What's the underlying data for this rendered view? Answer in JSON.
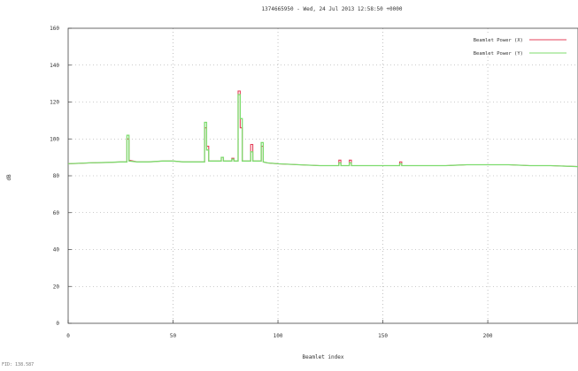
{
  "chart_data": {
    "type": "line",
    "title": "1374665950 - Wed, 24 Jul 2013 12:58:50 +0000",
    "xlabel": "Beamlet index",
    "ylabel": "dB",
    "xlim": [
      0,
      243
    ],
    "ylim": [
      0,
      160
    ],
    "x_ticks": [
      0,
      50,
      100,
      150,
      200
    ],
    "y_ticks": [
      0,
      20,
      40,
      60,
      80,
      100,
      120,
      140,
      160
    ],
    "grid": true,
    "legend_position": "top-right",
    "footer_text": "FID: 138.587",
    "series": [
      {
        "name": "Beamlet Power (X)",
        "color": "#e4405a",
        "x": [
          0,
          10,
          20,
          25,
          28,
          28,
          29,
          29,
          33,
          38,
          45,
          50,
          55,
          60,
          64,
          65,
          65,
          66,
          66,
          67,
          67,
          70,
          73,
          73,
          74,
          74,
          78,
          78,
          79,
          79,
          81,
          81,
          82,
          82,
          83,
          83,
          87,
          87,
          88,
          88,
          92,
          92,
          93,
          93,
          95,
          100,
          110,
          120,
          129,
          129,
          130,
          130,
          134,
          134,
          135,
          135,
          140,
          150,
          158,
          158,
          159,
          159,
          170,
          180,
          190,
          200,
          210,
          220,
          230,
          243
        ],
        "y": [
          86.5,
          87,
          87.3,
          87.5,
          87.5,
          100,
          100,
          88.5,
          87.5,
          87.5,
          88,
          88,
          87.5,
          87.5,
          87.5,
          87.5,
          106,
          106,
          96,
          96,
          88,
          88,
          88,
          90,
          90,
          88,
          88,
          89.5,
          89.5,
          88,
          88,
          126,
          126,
          106,
          106,
          88,
          88,
          97,
          97,
          88,
          88,
          96,
          96,
          87.5,
          87,
          86.5,
          86,
          85.5,
          85.5,
          88.5,
          88.5,
          85.5,
          85.5,
          88.5,
          88.5,
          85.5,
          85.5,
          85.5,
          85.5,
          87.5,
          87.5,
          85.5,
          85.5,
          85.5,
          86,
          86,
          86,
          85.5,
          85.5,
          85
        ]
      },
      {
        "name": "Beamlet Power (Y)",
        "color": "#7ddc6e",
        "x": [
          0,
          10,
          20,
          25,
          28,
          28,
          29,
          29,
          33,
          38,
          45,
          50,
          55,
          60,
          64,
          65,
          65,
          66,
          66,
          67,
          67,
          70,
          73,
          73,
          74,
          74,
          78,
          78,
          79,
          79,
          81,
          81,
          82,
          82,
          83,
          83,
          87,
          87,
          88,
          88,
          92,
          92,
          93,
          93,
          95,
          100,
          110,
          120,
          129,
          129,
          130,
          130,
          134,
          134,
          135,
          135,
          140,
          150,
          158,
          158,
          159,
          159,
          170,
          180,
          190,
          200,
          210,
          220,
          230,
          243
        ],
        "y": [
          86.5,
          87,
          87.3,
          87.5,
          87.5,
          102,
          102,
          88,
          87.5,
          87.5,
          88,
          88,
          87.5,
          87.5,
          87.5,
          87.5,
          109,
          109,
          94,
          94,
          88,
          88,
          88,
          90,
          90,
          88,
          88,
          89,
          89,
          88,
          88,
          124,
          124,
          111,
          111,
          88,
          88,
          93,
          93,
          88,
          88,
          98,
          98,
          87.5,
          87,
          86.5,
          86,
          85.5,
          85.5,
          87,
          87,
          85.5,
          85.5,
          87,
          87,
          85.5,
          85.5,
          85.5,
          85.5,
          86.5,
          86.5,
          85.5,
          85.5,
          85.5,
          86,
          86,
          86,
          85.5,
          85.5,
          85
        ]
      }
    ]
  }
}
